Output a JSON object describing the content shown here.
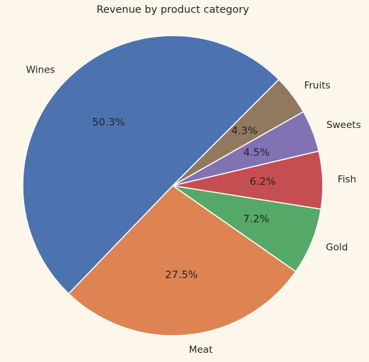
{
  "chart_data": {
    "type": "pie",
    "title": "Revenue by product category",
    "categories": [
      "Wines",
      "Meat",
      "Gold",
      "Fish",
      "Sweets",
      "Fruits"
    ],
    "values": [
      50.3,
      27.5,
      7.2,
      6.2,
      4.5,
      4.3
    ],
    "value_labels": [
      "50.3%",
      "27.5%",
      "7.2%",
      "6.2%",
      "4.5%",
      "4.3%"
    ],
    "colors": [
      "#4c72b0",
      "#dd8452",
      "#55a868",
      "#c44e52",
      "#8172b3",
      "#937860"
    ],
    "start_angle_deg": 45,
    "direction": "counterclockwise",
    "legend": "none"
  }
}
